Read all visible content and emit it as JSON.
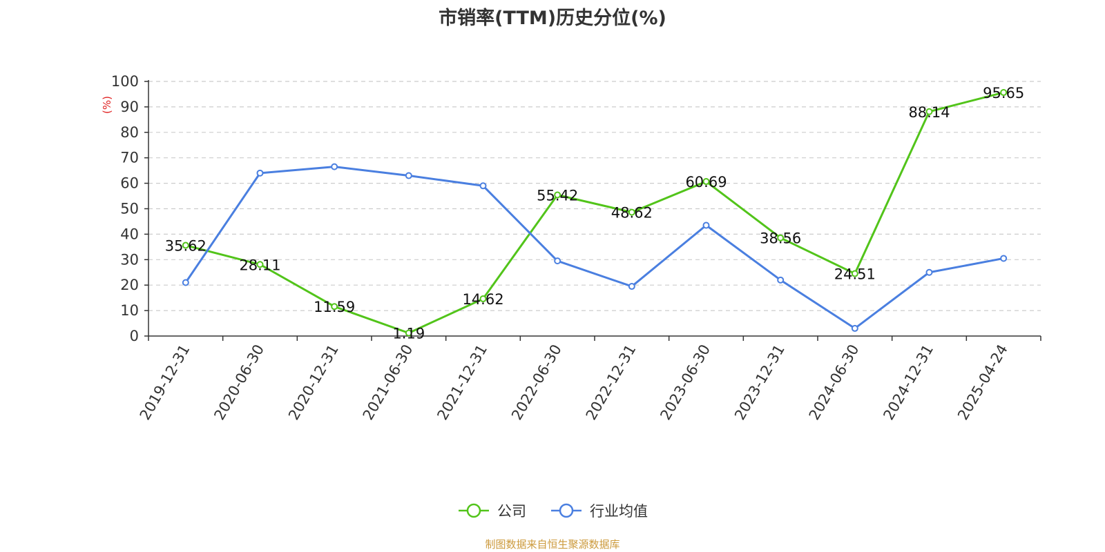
{
  "title": "市销率(TTM)历史分位(%)",
  "source_note": "制图数据来自恒生聚源数据库",
  "colors": {
    "company": "#52c41a",
    "industry": "#4a7fe0",
    "unit_label": "#e02020"
  },
  "chart_data": {
    "type": "line",
    "title": "市销率(TTM)历史分位(%)",
    "xlabel": "",
    "ylabel": "(%)",
    "ylim": [
      0,
      100
    ],
    "yticks": [
      0,
      10,
      20,
      30,
      40,
      50,
      60,
      70,
      80,
      90,
      100
    ],
    "grid": true,
    "legend_position": "bottom",
    "categories": [
      "2019-12-31",
      "2020-06-30",
      "2020-12-31",
      "2021-06-30",
      "2021-12-31",
      "2022-06-30",
      "2022-12-31",
      "2023-06-30",
      "2023-12-31",
      "2024-06-30",
      "2024-12-31",
      "2025-04-24"
    ],
    "series": [
      {
        "name": "公司",
        "color": "#52c41a",
        "show_labels": true,
        "values": [
          35.62,
          28.11,
          11.59,
          1.19,
          14.62,
          55.42,
          48.62,
          60.69,
          38.56,
          24.51,
          88.14,
          95.65
        ]
      },
      {
        "name": "行业均值",
        "color": "#4a7fe0",
        "show_labels": false,
        "values": [
          21,
          64,
          66.5,
          63,
          59,
          29.5,
          19.5,
          43.5,
          22,
          3,
          25,
          30.5
        ]
      }
    ]
  }
}
